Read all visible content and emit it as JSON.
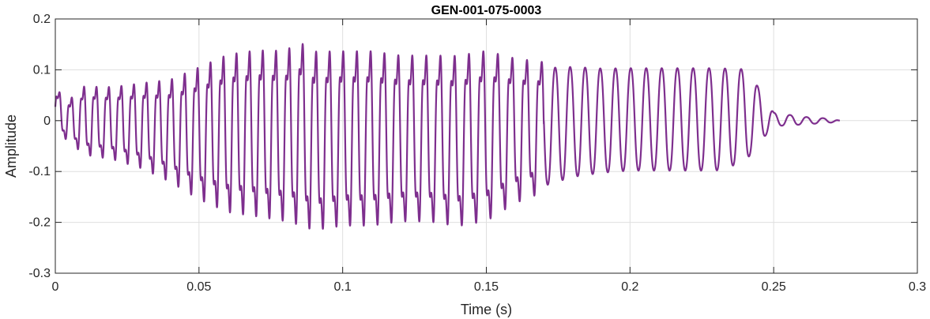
{
  "chart_data": {
    "type": "line",
    "title": "GEN-001-075-0003",
    "xlabel": "Time (s)",
    "ylabel": "Amplitude",
    "xlim": [
      0,
      0.3
    ],
    "ylim": [
      -0.3,
      0.2
    ],
    "xticks": [
      0,
      0.05,
      0.1,
      0.15,
      0.2,
      0.25,
      0.3
    ],
    "xtick_labels": [
      "0",
      "0.05",
      "0.1",
      "0.15",
      "0.2",
      "0.25",
      "0.3"
    ],
    "yticks": [
      -0.3,
      -0.2,
      -0.1,
      0,
      0.1,
      0.2
    ],
    "ytick_labels": [
      "-0.3",
      "-0.2",
      "-0.1",
      "0",
      "0.1",
      "0.2"
    ],
    "grid": true,
    "line_color": "#7E2F8E",
    "series": [
      {
        "x": [
          0,
          0.005,
          0.01,
          0.02,
          0.03,
          0.04,
          0.05,
          0.06,
          0.07,
          0.08,
          0.085,
          0.09,
          0.1,
          0.11,
          0.12,
          0.13,
          0.14,
          0.15,
          0.16,
          0.17,
          0.18,
          0.19,
          0.2,
          0.21,
          0.22,
          0.23,
          0.24,
          0.245,
          0.25,
          0.26,
          0.27,
          0.273
        ],
        "upper": [
          0.07,
          0.05,
          0.08,
          0.08,
          0.09,
          0.1,
          0.13,
          0.16,
          0.17,
          0.17,
          0.19,
          0.17,
          0.17,
          0.17,
          0.16,
          0.16,
          0.16,
          0.17,
          0.15,
          0.14,
          0.14,
          0.135,
          0.135,
          0.135,
          0.135,
          0.135,
          0.13,
          0.08,
          0.02,
          0.01,
          0.005,
          0.0
        ],
        "lower": [
          -0.03,
          -0.05,
          -0.08,
          -0.09,
          -0.11,
          -0.14,
          -0.18,
          -0.21,
          -0.22,
          -0.23,
          -0.24,
          -0.25,
          -0.24,
          -0.24,
          -0.23,
          -0.23,
          -0.24,
          -0.23,
          -0.19,
          -0.165,
          -0.145,
          -0.135,
          -0.13,
          -0.13,
          -0.13,
          -0.13,
          -0.11,
          -0.06,
          -0.015,
          -0.01,
          -0.005,
          0.0
        ]
      }
    ]
  }
}
